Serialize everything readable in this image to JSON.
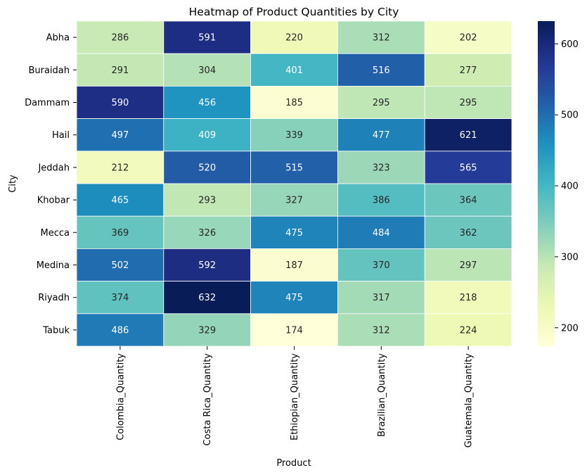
{
  "chart_data": {
    "type": "heatmap",
    "title": "Heatmap of Product Quantities by City",
    "xlabel": "Product",
    "ylabel": "City",
    "x_categories": [
      "Colombia_Quantity",
      "Costa Rica_Quantity",
      "Ethiopian_Quantity",
      "Brazilian_Quantity",
      "Guatemala_Quantity"
    ],
    "y_categories": [
      "Abha",
      "Buraidah",
      "Dammam",
      "Hail",
      "Jeddah",
      "Khobar",
      "Mecca",
      "Medina",
      "Riyadh",
      "Tabuk"
    ],
    "values": [
      [
        286,
        591,
        220,
        312,
        202
      ],
      [
        291,
        304,
        401,
        516,
        277
      ],
      [
        590,
        456,
        185,
        295,
        295
      ],
      [
        497,
        409,
        339,
        477,
        621
      ],
      [
        212,
        520,
        515,
        323,
        565
      ],
      [
        465,
        293,
        327,
        386,
        364
      ],
      [
        369,
        326,
        475,
        484,
        362
      ],
      [
        502,
        592,
        187,
        370,
        297
      ],
      [
        374,
        632,
        475,
        317,
        218
      ],
      [
        486,
        329,
        174,
        312,
        224
      ]
    ],
    "colormap": "YlGnBu",
    "vmin": 174,
    "vmax": 632,
    "colorbar_ticks": [
      200,
      300,
      400,
      500,
      600
    ],
    "annotated": true,
    "grid_lines": true,
    "grid_line_color": "#ffffff",
    "colorbar_position": "right"
  }
}
